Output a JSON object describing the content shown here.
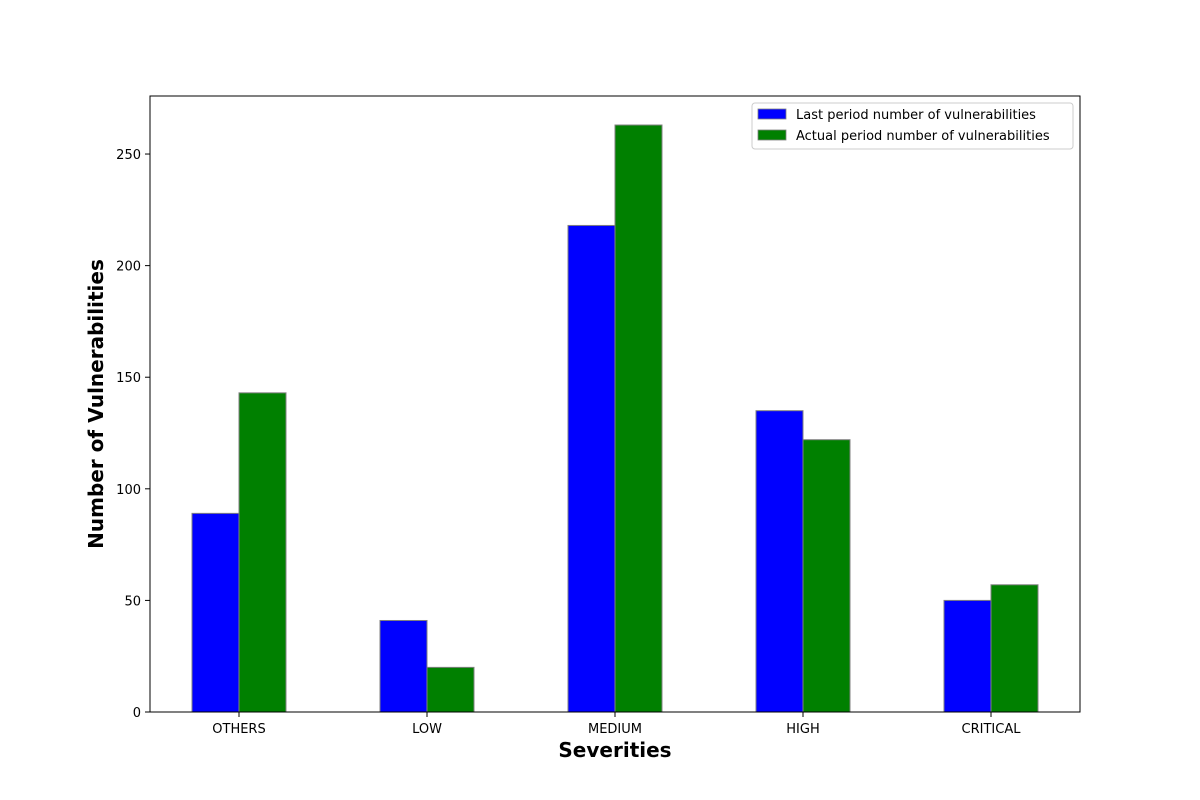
{
  "chart_data": {
    "type": "bar",
    "title": "",
    "xlabel": "Severities",
    "ylabel": "Number of Vulnerabilities",
    "categories": [
      "OTHERS",
      "LOW",
      "MEDIUM",
      "HIGH",
      "CRITICAL"
    ],
    "series": [
      {
        "name": "Last period number of vulnerabilities",
        "color": "#0000ff",
        "values": [
          89,
          41,
          218,
          135,
          50
        ]
      },
      {
        "name": "Actual period number of vulnerabilities",
        "color": "#008000",
        "values": [
          143,
          20,
          263,
          122,
          57
        ]
      }
    ],
    "ylim": [
      0,
      276
    ],
    "yticks": [
      0,
      50,
      100,
      150,
      200,
      250
    ],
    "grid": false,
    "legend_position": "top-right",
    "bar_edge_color": "#808080"
  }
}
